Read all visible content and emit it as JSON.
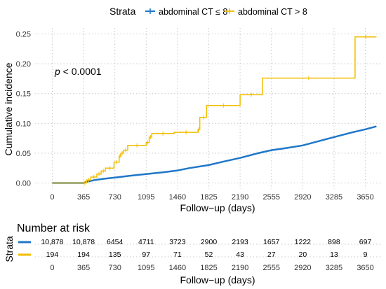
{
  "legend": {
    "title": "Strata",
    "items": [
      {
        "label": "abdominal CT ≤ 8",
        "color": "#1f77c8"
      },
      {
        "label": "abdominal CT > 8",
        "color": "#f2be00"
      }
    ]
  },
  "chart_data": {
    "type": "line",
    "ylabel": "Cumulative incidence",
    "xlabel": "Follow−up (days)",
    "annotation": {
      "p_label": "p",
      "p_value": " < 0.0001"
    },
    "x_ticks": [
      0,
      365,
      730,
      1095,
      1460,
      1825,
      2190,
      2555,
      2920,
      3285,
      3650
    ],
    "x_tick_labels": [
      "0",
      "365",
      "730",
      "1095",
      "1460",
      "1825",
      "2190",
      "2555",
      "2920",
      "3285",
      "3650"
    ],
    "y_ticks": [
      0,
      0.05,
      0.1,
      0.15,
      0.2,
      0.25
    ],
    "y_tick_labels": [
      "0.00",
      "0.05",
      "0.10",
      "0.15",
      "0.20",
      "0.25"
    ],
    "xlim": [
      -200,
      3850
    ],
    "ylim": [
      -0.01,
      0.26
    ],
    "grid": true,
    "legend_position": "top",
    "series": [
      {
        "name": "abdominal CT ≤ 8",
        "color": "#1f77c8",
        "points": [
          [
            0,
            0
          ],
          [
            365,
            0
          ],
          [
            400,
            0.002
          ],
          [
            500,
            0.005
          ],
          [
            600,
            0.007
          ],
          [
            730,
            0.009
          ],
          [
            900,
            0.012
          ],
          [
            1095,
            0.015
          ],
          [
            1300,
            0.018
          ],
          [
            1460,
            0.021
          ],
          [
            1600,
            0.025
          ],
          [
            1825,
            0.03
          ],
          [
            2000,
            0.036
          ],
          [
            2190,
            0.042
          ],
          [
            2400,
            0.05
          ],
          [
            2555,
            0.055
          ],
          [
            2700,
            0.058
          ],
          [
            2920,
            0.063
          ],
          [
            3100,
            0.07
          ],
          [
            3285,
            0.077
          ],
          [
            3500,
            0.085
          ],
          [
            3650,
            0.09
          ],
          [
            3780,
            0.095
          ]
        ]
      },
      {
        "name": "abdominal CT > 8",
        "color": "#f2be00",
        "steps": [
          [
            0,
            0
          ],
          [
            360,
            0
          ],
          [
            400,
            0.005
          ],
          [
            450,
            0.01
          ],
          [
            520,
            0.015
          ],
          [
            570,
            0.02
          ],
          [
            620,
            0.025
          ],
          [
            720,
            0.035
          ],
          [
            780,
            0.045
          ],
          [
            800,
            0.05
          ],
          [
            830,
            0.055
          ],
          [
            880,
            0.063
          ],
          [
            1095,
            0.068
          ],
          [
            1130,
            0.077
          ],
          [
            1160,
            0.083
          ],
          [
            1420,
            0.085
          ],
          [
            1700,
            0.09
          ],
          [
            1720,
            0.11
          ],
          [
            1800,
            0.13
          ],
          [
            2190,
            0.148
          ],
          [
            2450,
            0.176
          ],
          [
            3530,
            0.245
          ],
          [
            3780,
            0.245
          ]
        ]
      }
    ]
  },
  "risk_table": {
    "title": "Number at risk",
    "ylabel": "Strata",
    "xlabel": "Follow−up (days)",
    "rows": [
      {
        "color": "#1f77c8",
        "values": [
          "10,878",
          "10,878",
          "6454",
          "4711",
          "3723",
          "2900",
          "2193",
          "1657",
          "1222",
          "898",
          "697"
        ]
      },
      {
        "color": "#f2be00",
        "values": [
          "194",
          "194",
          "135",
          "97",
          "71",
          "52",
          "43",
          "27",
          "20",
          "13",
          "9"
        ]
      }
    ],
    "x_tick_labels": [
      "0",
      "365",
      "730",
      "1095",
      "1460",
      "1825",
      "2190",
      "2555",
      "2920",
      "3285",
      "3650"
    ]
  }
}
